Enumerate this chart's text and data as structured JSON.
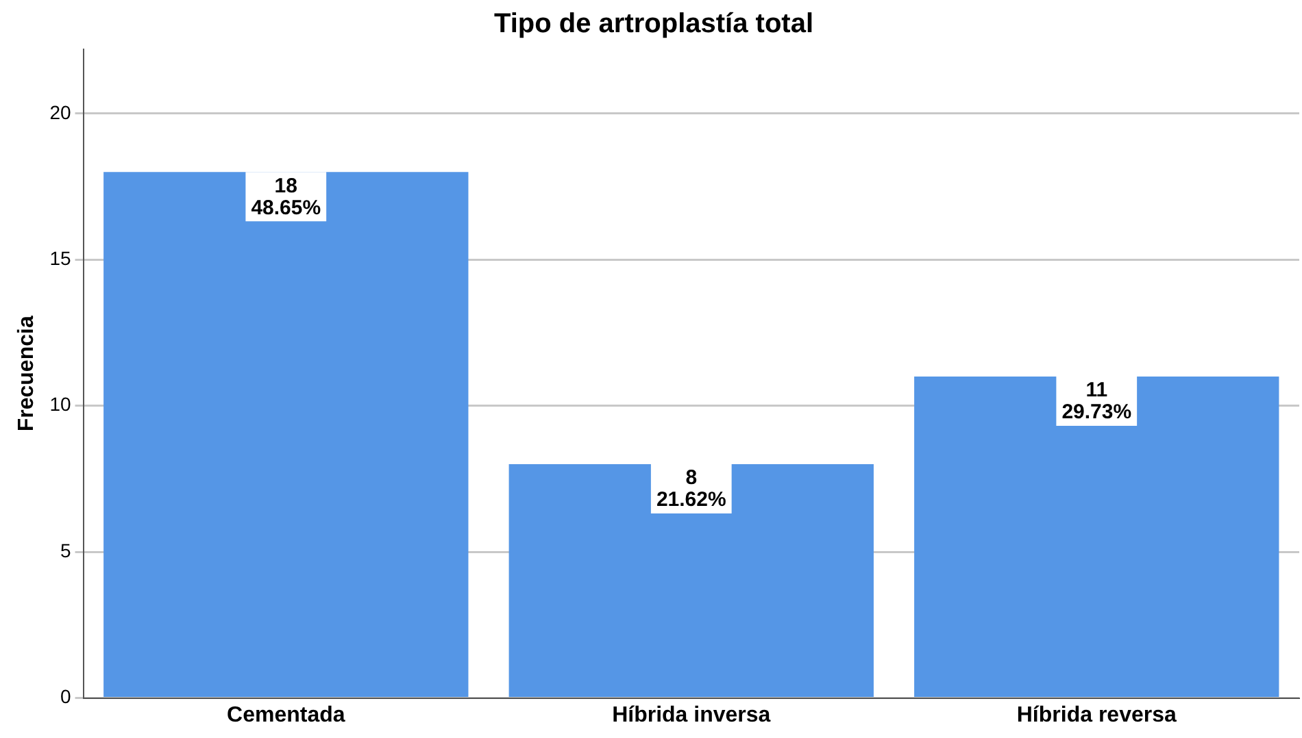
{
  "chart_data": {
    "type": "bar",
    "title": "Tipo de artroplastía total",
    "ylabel": "Frecuencia",
    "categories": [
      "Cementada",
      "Híbrida inversa",
      "Híbrida reversa"
    ],
    "values": [
      18,
      8,
      11
    ],
    "value_labels": [
      "18\n48.65%",
      "8\n21.62%",
      "11\n29.73%"
    ],
    "color": "#5596e6",
    "ylim": [
      0,
      22.2
    ],
    "yticks": [
      0,
      5,
      10,
      15,
      20
    ],
    "grid": "y",
    "legend": false
  }
}
